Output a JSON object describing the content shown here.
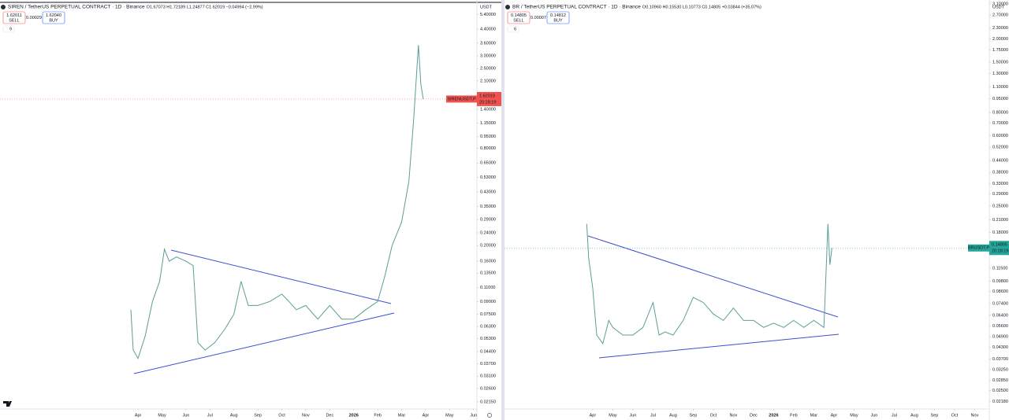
{
  "chart_data": [
    {
      "type": "line",
      "log_scale": true,
      "grid": false,
      "currency": "USDT",
      "title": "SIREN / TetherUS PERPETUAL CONTRACT · 1D · Binance",
      "ohlc": "O1.67073 H1.72189 L1.24877 C1.62019 −0.04994 (−2.99%)",
      "ohlc_color": "#ef5350",
      "sell_price": "1.62011",
      "sell_label": "SELL",
      "spread": "0.00029",
      "buy_price": "1.62040",
      "buy_label": "BUY",
      "indicator_count": "9",
      "symbol_tag": "SIRENUSDT.P",
      "last_price": "1.62019",
      "countdown": "20:28:19",
      "tag_color": "#ef5350",
      "xlim": [
        -5.76,
        14.14
      ],
      "xticks": [
        {
          "value": 0,
          "label": "Apr"
        },
        {
          "value": 1,
          "label": "May"
        },
        {
          "value": 2,
          "label": "Jun"
        },
        {
          "value": 3,
          "label": "Jul"
        },
        {
          "value": 4,
          "label": "Aug"
        },
        {
          "value": 5,
          "label": "Sep"
        },
        {
          "value": 6,
          "label": "Oct"
        },
        {
          "value": 7,
          "label": "Nov"
        },
        {
          "value": 8,
          "label": "Dec"
        },
        {
          "value": 9,
          "label": "2026"
        },
        {
          "value": 10,
          "label": "Feb"
        },
        {
          "value": 11,
          "label": "Mar"
        },
        {
          "value": 12,
          "label": "Apr"
        },
        {
          "value": 13,
          "label": "May"
        },
        {
          "value": 14,
          "label": "Jun"
        }
      ],
      "ylim": [
        0.0194,
        6.37
      ],
      "yticks": [
        {
          "value": 5.4,
          "label": "5.40000"
        },
        {
          "value": 4.4,
          "label": "4.40000"
        },
        {
          "value": 3.6,
          "label": "3.60000"
        },
        {
          "value": 3,
          "label": "3.00000"
        },
        {
          "value": 2.5,
          "label": "2.50000"
        },
        {
          "value": 2.1,
          "label": "2.10000"
        },
        {
          "value": 1.4,
          "label": "1.40000"
        },
        {
          "value": 1.15,
          "label": "1.15000"
        },
        {
          "value": 0.95,
          "label": "0.95000"
        },
        {
          "value": 0.8,
          "label": "0.80000"
        },
        {
          "value": 0.65,
          "label": "0.65000"
        },
        {
          "value": 0.53,
          "label": "0.53000"
        },
        {
          "value": 0.43,
          "label": "0.43000"
        },
        {
          "value": 0.35,
          "label": "0.35000"
        },
        {
          "value": 0.29,
          "label": "0.29000"
        },
        {
          "value": 0.24,
          "label": "0.24000"
        },
        {
          "value": 0.2,
          "label": "0.20000"
        },
        {
          "value": 0.16,
          "label": "0.16000"
        },
        {
          "value": 0.135,
          "label": "0.13500"
        },
        {
          "value": 0.11,
          "label": "0.11000"
        },
        {
          "value": 0.09,
          "label": "0.09000"
        },
        {
          "value": 0.075,
          "label": "0.07500"
        },
        {
          "value": 0.063,
          "label": "0.06300"
        },
        {
          "value": 0.053,
          "label": "0.05300"
        },
        {
          "value": 0.044,
          "label": "0.04400"
        },
        {
          "value": 0.037,
          "label": "0.03700"
        },
        {
          "value": 0.031,
          "label": "0.03100"
        },
        {
          "value": 0.026,
          "label": "0.02600"
        },
        {
          "value": 0.0215,
          "label": "0.02150"
        }
      ],
      "series": [
        {
          "name": "SIRENUSDT.P",
          "color": "#5b9e96",
          "x": [
            -0.3,
            -0.2,
            0,
            0.3,
            0.6,
            0.9,
            1.1,
            1.3,
            1.6,
            2.0,
            2.3,
            2.5,
            2.8,
            3.2,
            3.6,
            4.0,
            4.3,
            4.6,
            5.0,
            5.5,
            6.0,
            6.3,
            6.6,
            7.0,
            7.5,
            8.0,
            8.5,
            9.0,
            9.5,
            10.0,
            10.3,
            10.6,
            11.0,
            11.3,
            11.5,
            11.7,
            11.8,
            11.9
          ],
          "values": [
            0.08,
            0.045,
            0.04,
            0.055,
            0.09,
            0.12,
            0.19,
            0.16,
            0.17,
            0.16,
            0.15,
            0.05,
            0.045,
            0.05,
            0.06,
            0.075,
            0.12,
            0.085,
            0.085,
            0.09,
            0.1,
            0.09,
            0.08,
            0.085,
            0.07,
            0.085,
            0.07,
            0.07,
            0.08,
            0.09,
            0.13,
            0.2,
            0.28,
            0.5,
            1.2,
            3.5,
            2.0,
            1.62019
          ]
        }
      ]
    },
    {
      "type": "line",
      "log_scale": true,
      "grid": false,
      "currency": "USDT",
      "title": "BR / TetherUS PERPETUAL CONTRACT · 1D · Binance",
      "ohlc": "O0.10960 H0.15530 L0.10773 C0.14805 +0.03844 (+35.07%)",
      "ohlc_color": "#26a69a",
      "sell_price": "0.14805",
      "sell_label": "SELL",
      "spread": "0.00007",
      "buy_price": "0.14812",
      "buy_label": "BUY",
      "indicator_count": "6",
      "symbol_tag": "BRUSDT.P",
      "last_price": "0.14805",
      "countdown": "20:28:19",
      "tag_color": "#26a69a",
      "xlim": [
        -4.39,
        19.73
      ],
      "xticks": [
        {
          "value": 0,
          "label": "Apr"
        },
        {
          "value": 1,
          "label": "May"
        },
        {
          "value": 2,
          "label": "Jun"
        },
        {
          "value": 3,
          "label": "Jul"
        },
        {
          "value": 4,
          "label": "Aug"
        },
        {
          "value": 5,
          "label": "Sep"
        },
        {
          "value": 6,
          "label": "Oct"
        },
        {
          "value": 7,
          "label": "Nov"
        },
        {
          "value": 8,
          "label": "Dec"
        },
        {
          "value": 9,
          "label": "2026"
        },
        {
          "value": 10,
          "label": "Feb"
        },
        {
          "value": 11,
          "label": "Mar"
        },
        {
          "value": 12,
          "label": "Apr"
        },
        {
          "value": 13,
          "label": "May"
        },
        {
          "value": 14,
          "label": "Jun"
        },
        {
          "value": 15,
          "label": "Jul"
        },
        {
          "value": 16,
          "label": "Aug"
        },
        {
          "value": 17,
          "label": "Sep"
        },
        {
          "value": 18,
          "label": "Oct"
        },
        {
          "value": 19,
          "label": "Nov"
        }
      ],
      "ylim": [
        0.0199,
        3.13
      ],
      "yticks": [
        {
          "value": 3.1,
          "label": "3.10000"
        },
        {
          "value": 2.7,
          "label": "2.70000"
        },
        {
          "value": 2.3,
          "label": "2.30000"
        },
        {
          "value": 2,
          "label": "2.00000"
        },
        {
          "value": 1.75,
          "label": "1.75000"
        },
        {
          "value": 1.5,
          "label": "1.50000"
        },
        {
          "value": 1.3,
          "label": "1.30000"
        },
        {
          "value": 1.1,
          "label": "1.10000"
        },
        {
          "value": 0.95,
          "label": "0.95000"
        },
        {
          "value": 0.8,
          "label": "0.80000"
        },
        {
          "value": 0.7,
          "label": "0.70000"
        },
        {
          "value": 0.6,
          "label": "0.60000"
        },
        {
          "value": 0.52,
          "label": "0.52000"
        },
        {
          "value": 0.44,
          "label": "0.44000"
        },
        {
          "value": 0.38,
          "label": "0.38000"
        },
        {
          "value": 0.33,
          "label": "0.33000"
        },
        {
          "value": 0.29,
          "label": "0.29000"
        },
        {
          "value": 0.25,
          "label": "0.25000"
        },
        {
          "value": 0.21,
          "label": "0.21000"
        },
        {
          "value": 0.18,
          "label": "0.18000"
        },
        {
          "value": 0.115,
          "label": "0.11500"
        },
        {
          "value": 0.098,
          "label": "0.09800"
        },
        {
          "value": 0.086,
          "label": "0.08600"
        },
        {
          "value": 0.074,
          "label": "0.07400"
        },
        {
          "value": 0.064,
          "label": "0.06400"
        },
        {
          "value": 0.056,
          "label": "0.05600"
        },
        {
          "value": 0.049,
          "label": "0.04900"
        },
        {
          "value": 0.043,
          "label": "0.04300"
        },
        {
          "value": 0.037,
          "label": "0.03700"
        },
        {
          "value": 0.0325,
          "label": "0.03250"
        },
        {
          "value": 0.0285,
          "label": "0.02850"
        },
        {
          "value": 0.025,
          "label": "0.02500"
        },
        {
          "value": 0.0218,
          "label": "0.02180"
        }
      ],
      "series": [
        {
          "name": "BRUSDT.P",
          "color": "#5b9e96",
          "x": [
            -0.3,
            -0.2,
            0,
            0.2,
            0.5,
            0.8,
            1.0,
            1.5,
            2.0,
            2.5,
            3.0,
            3.3,
            3.6,
            4.0,
            4.5,
            5.0,
            5.5,
            6.0,
            6.5,
            7.0,
            7.5,
            8.0,
            8.5,
            9.0,
            9.5,
            10.0,
            10.5,
            11.0,
            11.5,
            11.7,
            11.8,
            11.9
          ],
          "values": [
            0.2,
            0.13,
            0.09,
            0.05,
            0.045,
            0.06,
            0.055,
            0.05,
            0.05,
            0.055,
            0.075,
            0.05,
            0.052,
            0.05,
            0.06,
            0.08,
            0.075,
            0.065,
            0.06,
            0.07,
            0.06,
            0.06,
            0.055,
            0.058,
            0.055,
            0.06,
            0.055,
            0.06,
            0.055,
            0.2,
            0.12,
            0.14805
          ]
        }
      ]
    }
  ]
}
